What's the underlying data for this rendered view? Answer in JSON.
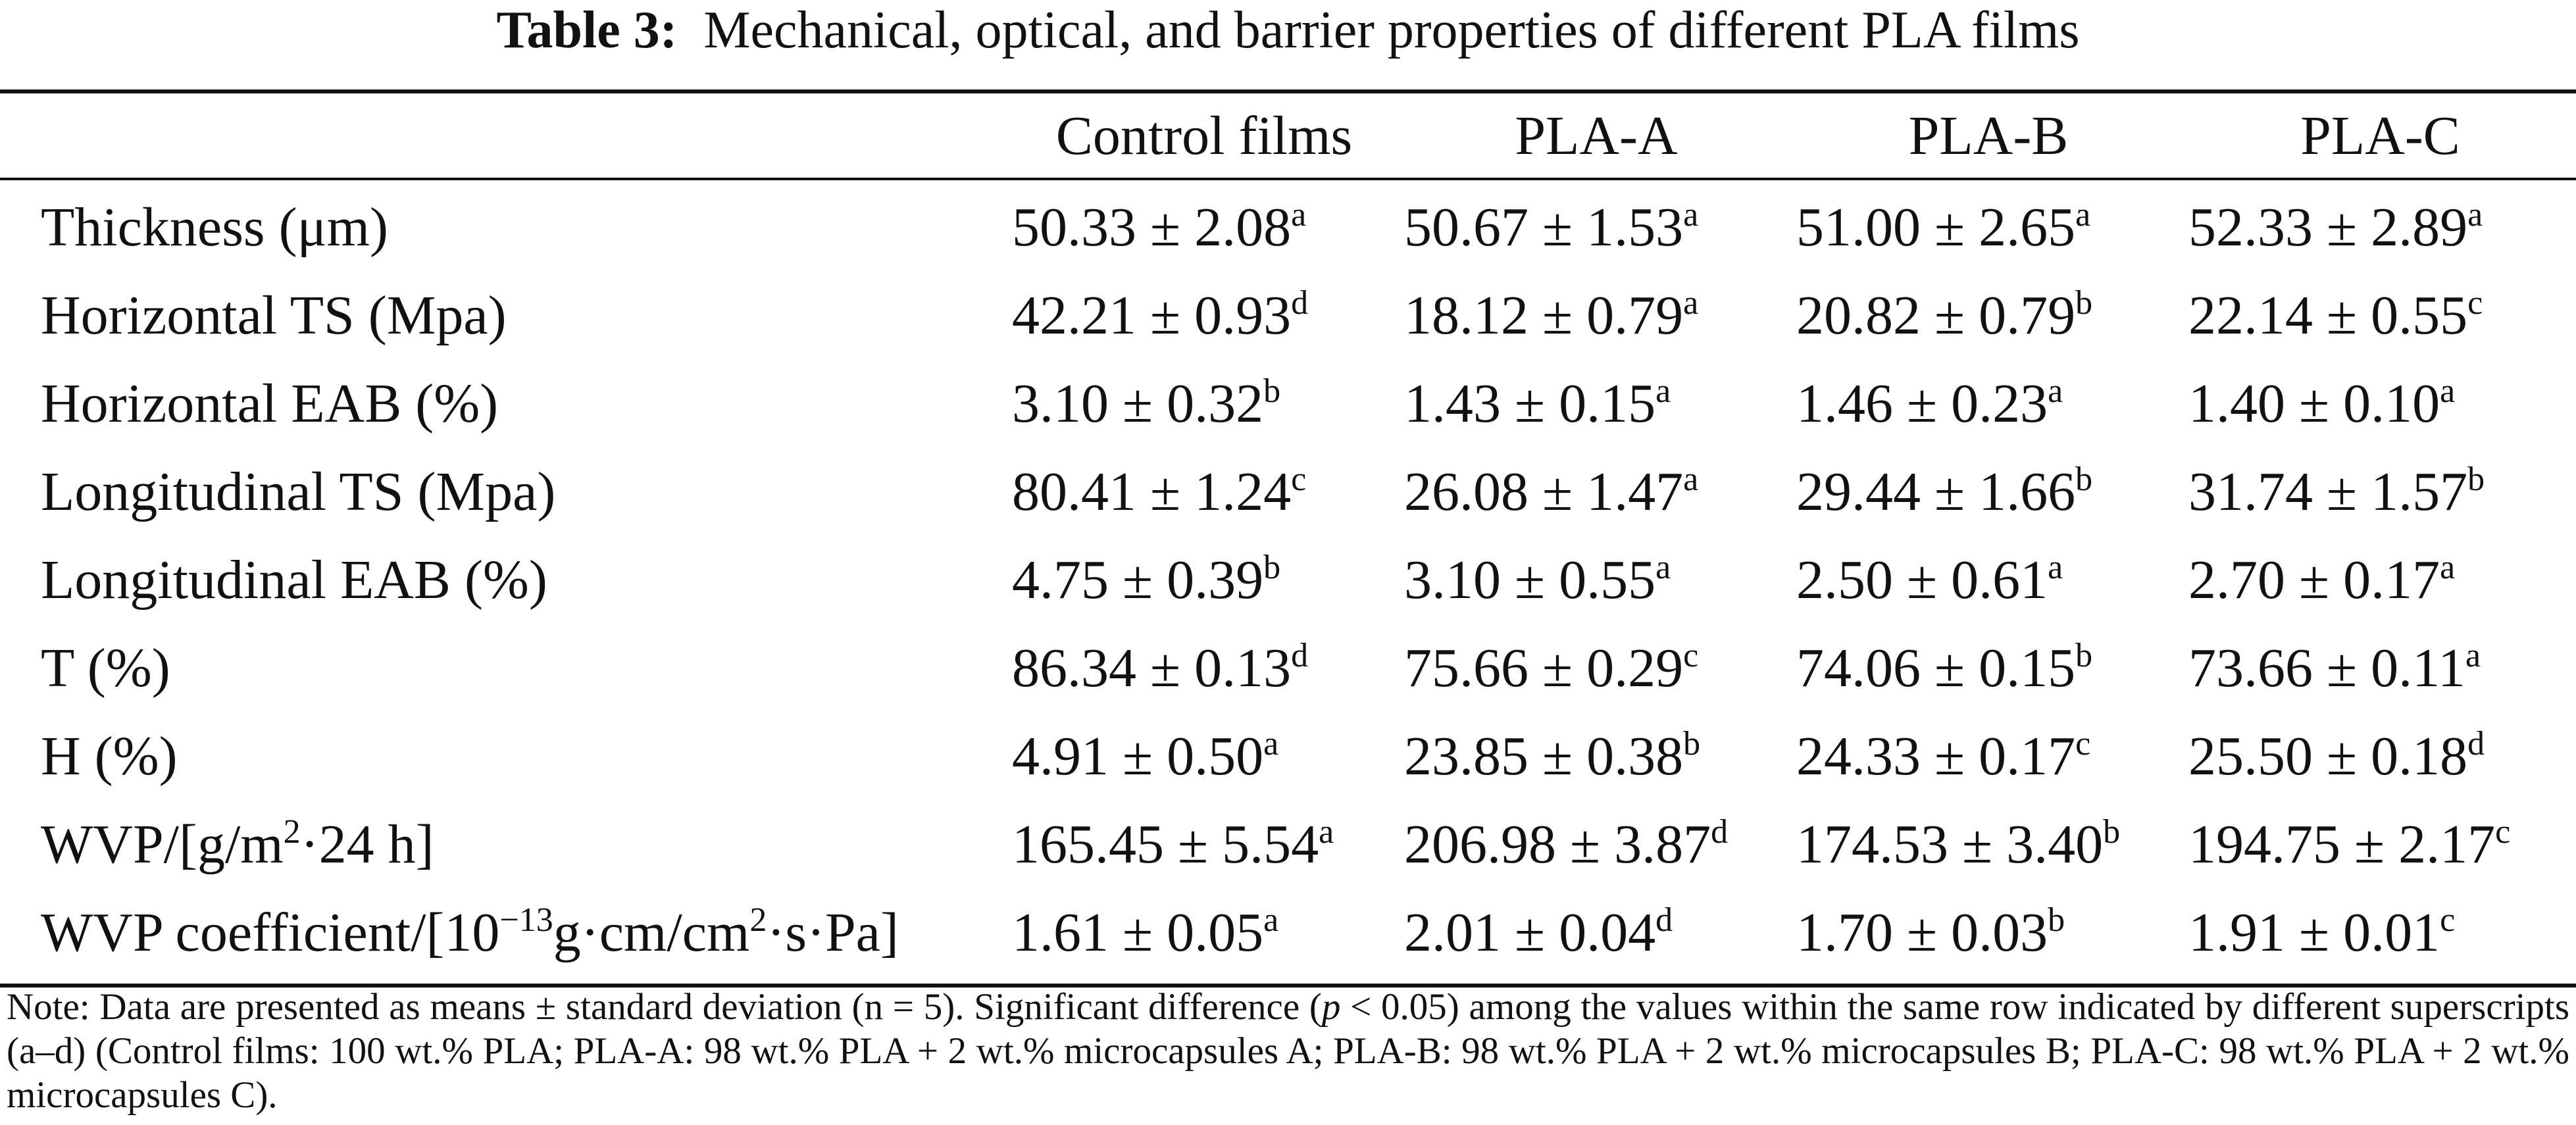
{
  "table": {
    "title_label": "Table 3:",
    "title_text": "Mechanical, optical, and barrier properties of different PLA films",
    "columns": [
      "Control films",
      "PLA-A",
      "PLA-B",
      "PLA-C"
    ],
    "rows": [
      {
        "label": "Thickness (μm)",
        "cells": [
          {
            "value": "50.33 ± 2.08",
            "sup": "a"
          },
          {
            "value": "50.67 ± 1.53",
            "sup": "a"
          },
          {
            "value": "51.00 ± 2.65",
            "sup": "a"
          },
          {
            "value": "52.33 ± 2.89",
            "sup": "a"
          }
        ]
      },
      {
        "label": "Horizontal TS (Mpa)",
        "cells": [
          {
            "value": "42.21 ± 0.93",
            "sup": "d"
          },
          {
            "value": "18.12 ± 0.79",
            "sup": "a"
          },
          {
            "value": "20.82 ± 0.79",
            "sup": "b"
          },
          {
            "value": "22.14 ± 0.55",
            "sup": "c"
          }
        ]
      },
      {
        "label": "Horizontal EAB (%)",
        "cells": [
          {
            "value": "3.10 ± 0.32",
            "sup": "b"
          },
          {
            "value": "1.43 ± 0.15",
            "sup": "a"
          },
          {
            "value": "1.46 ± 0.23",
            "sup": "a"
          },
          {
            "value": "1.40 ± 0.10",
            "sup": "a"
          }
        ]
      },
      {
        "label": "Longitudinal TS (Mpa)",
        "cells": [
          {
            "value": "80.41 ± 1.24",
            "sup": "c"
          },
          {
            "value": "26.08 ± 1.47",
            "sup": "a"
          },
          {
            "value": "29.44 ± 1.66",
            "sup": "b"
          },
          {
            "value": "31.74 ± 1.57",
            "sup": "b"
          }
        ]
      },
      {
        "label": "Longitudinal EAB (%)",
        "cells": [
          {
            "value": "4.75 ± 0.39",
            "sup": "b"
          },
          {
            "value": "3.10 ± 0.55",
            "sup": "a"
          },
          {
            "value": "2.50 ± 0.61",
            "sup": "a"
          },
          {
            "value": "2.70 ± 0.17",
            "sup": "a"
          }
        ]
      },
      {
        "label": "T (%)",
        "cells": [
          {
            "value": "86.34 ± 0.13",
            "sup": "d"
          },
          {
            "value": "75.66 ± 0.29",
            "sup": "c"
          },
          {
            "value": "74.06 ± 0.15",
            "sup": "b"
          },
          {
            "value": "73.66 ± 0.11",
            "sup": "a"
          }
        ]
      },
      {
        "label": "H (%)",
        "cells": [
          {
            "value": "4.91 ± 0.50",
            "sup": "a"
          },
          {
            "value": "23.85 ± 0.38",
            "sup": "b"
          },
          {
            "value": "24.33 ± 0.17",
            "sup": "c"
          },
          {
            "value": "25.50 ± 0.18",
            "sup": "d"
          }
        ]
      },
      {
        "label": "WVP/[g/m",
        "label_sup": "2",
        "label_after": "·24 h]",
        "cells": [
          {
            "value": "165.45 ± 5.54",
            "sup": "a"
          },
          {
            "value": "206.98 ± 3.87",
            "sup": "d"
          },
          {
            "value": "174.53 ± 3.40",
            "sup": "b"
          },
          {
            "value": "194.75 ± 2.17",
            "sup": "c"
          }
        ]
      },
      {
        "label": "WVP coefficient/[10",
        "label_sup": "−13",
        "label_mid": "g·cm/cm",
        "label_sup2": "2",
        "label_after": "·s·Pa]",
        "cells": [
          {
            "value": "1.61 ± 0.05",
            "sup": "a"
          },
          {
            "value": "2.01 ± 0.04",
            "sup": "d"
          },
          {
            "value": "1.70 ± 0.03",
            "sup": "b"
          },
          {
            "value": "1.91 ± 0.01",
            "sup": "c"
          }
        ]
      }
    ],
    "note": {
      "part1": "Note: Data are presented as means ± standard deviation (n = 5). Significant difference (",
      "p_symbol": "p",
      "part2": " < 0.05) among the values within the same row indicated by different superscripts (a–d) (Control films: 100 wt.% PLA; PLA-A: 98 wt.% PLA + 2 wt.% microcapsules A; PLA-B: 98 wt.% PLA + 2 wt.% microcapsules B; PLA-C: 98 wt.% PLA + 2 wt.% microcapsules C)."
    }
  }
}
